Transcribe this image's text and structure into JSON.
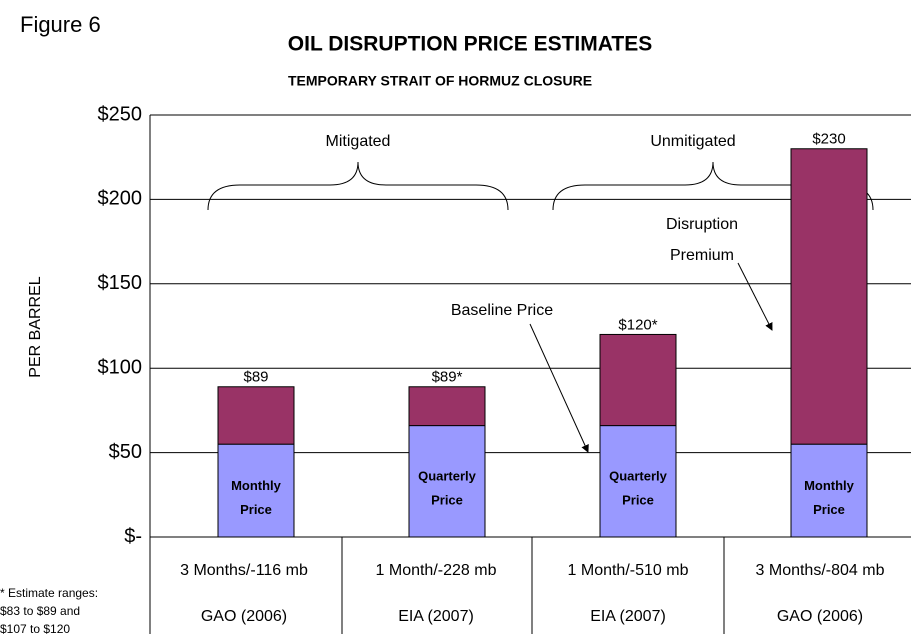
{
  "chart_data": {
    "type": "stacked_bar",
    "figure_label": "Figure 6",
    "title": "OIL DISRUPTION PRICE ESTIMATES",
    "subtitle": "TEMPORARY STRAIT OF HORMUZ CLOSURE",
    "y_label": "PER BARREL",
    "categories": [
      "3 Months/-116 mb",
      "1 Month/-228 mb",
      "1 Month/-510 mb",
      "3 Months/-804 mb"
    ],
    "sources": [
      "GAO (2006)",
      "EIA (2007)",
      "EIA (2007)",
      "GAO (2006)"
    ],
    "series": [
      {
        "name": "Baseline Price",
        "color": "#9999ff",
        "values": [
          55,
          66,
          66,
          55
        ],
        "segment_labels": [
          [
            "Monthly",
            "Price"
          ],
          [
            "Quarterly",
            "Price"
          ],
          [
            "Quarterly",
            "Price"
          ],
          [
            "Monthly",
            "Price"
          ]
        ]
      },
      {
        "name": "Disruption Premium",
        "color": "#993366",
        "values": [
          34,
          23,
          54,
          175
        ]
      }
    ],
    "totals": [
      89,
      89,
      120,
      230
    ],
    "total_labels": [
      "$89",
      "$89*",
      "$120*",
      "$230"
    ],
    "groups": [
      "Mitigated",
      "Unmitigated"
    ],
    "ylim": [
      0,
      250
    ],
    "yticks": [
      {
        "value": 0,
        "label": "$-"
      },
      {
        "value": 50,
        "label": "$50"
      },
      {
        "value": 100,
        "label": "$100"
      },
      {
        "value": 150,
        "label": "$150"
      },
      {
        "value": 200,
        "label": "$200"
      },
      {
        "value": 250,
        "label": "$250"
      }
    ],
    "grid": true,
    "footnote": [
      "* Estimate ranges:",
      "$83 to $89 and",
      "$107 to $120"
    ]
  }
}
